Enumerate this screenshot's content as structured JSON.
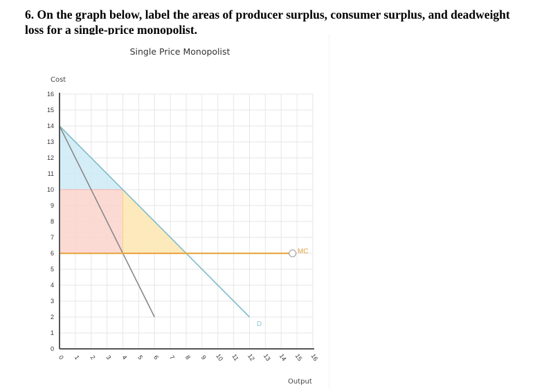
{
  "question": {
    "text": "6. On the graph below, label the areas of producer surplus, consumer surplus, and deadweight loss for a single-price monopolist."
  },
  "chart": {
    "title": "Single Price Monopolist",
    "y_axis_label": "Cost",
    "x_axis_label": "Output",
    "curve_labels": {
      "mc": "MC",
      "demand": "D"
    }
  },
  "colors": {
    "demand": "#7fbcc9",
    "mr": "#888888",
    "mc": "#e8a94a",
    "consumer_surplus": "#cdeaf6",
    "producer_surplus": "#fbd3cc",
    "deadweight_loss": "#fde6b0",
    "grid": "#e6e6e6",
    "axis": "#555555"
  },
  "chart_data": {
    "type": "line",
    "title": "Single Price Monopolist",
    "xlabel": "Output",
    "ylabel": "Cost",
    "xlim": [
      0,
      16
    ],
    "ylim": [
      0,
      16
    ],
    "x_ticks": [
      0,
      1,
      2,
      3,
      4,
      5,
      6,
      7,
      8,
      9,
      10,
      11,
      12,
      13,
      14,
      15,
      16
    ],
    "y_ticks": [
      0,
      1,
      2,
      3,
      4,
      5,
      6,
      7,
      8,
      9,
      10,
      11,
      12,
      13,
      14,
      15,
      16
    ],
    "grid": true,
    "series": [
      {
        "name": "D",
        "points": [
          [
            0,
            14
          ],
          [
            12,
            2
          ]
        ]
      },
      {
        "name": "MR",
        "points": [
          [
            0,
            14
          ],
          [
            6,
            2
          ]
        ]
      },
      {
        "name": "MC",
        "points": [
          [
            0,
            6
          ],
          [
            14.5,
            6
          ]
        ]
      }
    ],
    "shaded_areas": [
      {
        "name": "consumer surplus",
        "polygon": [
          [
            0,
            14
          ],
          [
            4,
            10
          ],
          [
            0,
            10
          ]
        ]
      },
      {
        "name": "producer surplus",
        "polygon": [
          [
            0,
            10
          ],
          [
            4,
            10
          ],
          [
            4,
            6
          ],
          [
            0,
            6
          ]
        ]
      },
      {
        "name": "deadweight loss",
        "polygon": [
          [
            4,
            10
          ],
          [
            8,
            6
          ],
          [
            4,
            6
          ]
        ]
      }
    ]
  }
}
